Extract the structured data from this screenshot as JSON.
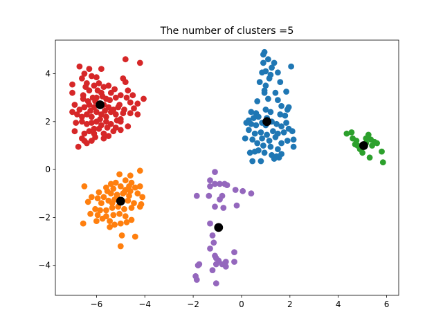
{
  "chart_data": {
    "type": "scatter",
    "title": "The number of clusters =5",
    "xlabel": "",
    "ylabel": "",
    "xlim": [
      -7.7,
      6.5
    ],
    "ylim": [
      -5.25,
      5.4
    ],
    "x_ticks": [
      -6,
      -4,
      -2,
      0,
      2,
      4,
      6
    ],
    "x_tick_labels": [
      "−6",
      "−4",
      "−2",
      "0",
      "2",
      "4",
      "6"
    ],
    "y_ticks": [
      -4,
      -2,
      0,
      2,
      4
    ],
    "y_tick_labels": [
      "−4",
      "−2",
      "0",
      "2",
      "4"
    ],
    "grid": false,
    "series": [
      {
        "color": "#d62728",
        "points": [
          [
            -6.7,
            4.3
          ],
          [
            -6.3,
            4.2
          ],
          [
            -6.5,
            4.0
          ],
          [
            -6.6,
            3.8
          ],
          [
            -6.2,
            3.9
          ],
          [
            -6.0,
            3.85
          ],
          [
            -5.8,
            4.2
          ],
          [
            -6.4,
            3.6
          ],
          [
            -6.1,
            3.5
          ],
          [
            -5.9,
            3.6
          ],
          [
            -5.7,
            3.45
          ],
          [
            -6.3,
            3.3
          ],
          [
            -5.5,
            3.5
          ],
          [
            -7.0,
            3.55
          ],
          [
            -7.0,
            3.2
          ],
          [
            -6.55,
            3.1
          ],
          [
            -6.0,
            3.0
          ],
          [
            -5.8,
            3.2
          ],
          [
            -5.6,
            2.95
          ],
          [
            -5.4,
            3.2
          ],
          [
            -5.2,
            3.0
          ],
          [
            -5.0,
            3.1
          ],
          [
            -4.9,
            3.8
          ],
          [
            -4.8,
            3.65
          ],
          [
            -4.7,
            3.3
          ],
          [
            -4.5,
            3.1
          ],
          [
            -4.6,
            2.8
          ],
          [
            -4.3,
            2.75
          ],
          [
            -4.8,
            4.6
          ],
          [
            -4.2,
            4.45
          ],
          [
            -4.05,
            2.95
          ],
          [
            -5.1,
            2.6
          ],
          [
            -5.3,
            2.5
          ],
          [
            -5.5,
            2.6
          ],
          [
            -5.7,
            2.7
          ],
          [
            -5.9,
            2.75
          ],
          [
            -6.1,
            2.6
          ],
          [
            -6.3,
            2.7
          ],
          [
            -6.5,
            2.6
          ],
          [
            -6.7,
            2.5
          ],
          [
            -6.9,
            2.7
          ],
          [
            -7.0,
            2.4
          ],
          [
            -6.8,
            2.3
          ],
          [
            -6.6,
            2.2
          ],
          [
            -6.4,
            2.3
          ],
          [
            -6.2,
            2.2
          ],
          [
            -6.0,
            2.4
          ],
          [
            -5.8,
            2.3
          ],
          [
            -5.6,
            2.2
          ],
          [
            -5.4,
            2.4
          ],
          [
            -5.2,
            2.3
          ],
          [
            -5.0,
            2.1
          ],
          [
            -4.85,
            2.5
          ],
          [
            -4.6,
            2.35
          ],
          [
            -4.45,
            2.55
          ],
          [
            -4.3,
            2.3
          ],
          [
            -6.85,
            1.95
          ],
          [
            -6.6,
            2.0
          ],
          [
            -6.4,
            1.9
          ],
          [
            -6.2,
            1.95
          ],
          [
            -6.0,
            2.0
          ],
          [
            -5.8,
            1.85
          ],
          [
            -5.6,
            2.0
          ],
          [
            -5.4,
            1.9
          ],
          [
            -5.2,
            1.75
          ],
          [
            -5.0,
            2.0
          ],
          [
            -4.7,
            1.8
          ],
          [
            -6.9,
            1.6
          ],
          [
            -6.5,
            1.5
          ],
          [
            -6.3,
            1.6
          ],
          [
            -6.1,
            1.5
          ],
          [
            -5.9,
            1.7
          ],
          [
            -5.7,
            1.5
          ],
          [
            -5.5,
            1.4
          ],
          [
            -5.3,
            1.6
          ],
          [
            -6.6,
            1.3
          ],
          [
            -6.4,
            1.1
          ],
          [
            -6.2,
            1.2
          ],
          [
            -5.7,
            1.3
          ],
          [
            -5.0,
            1.65
          ],
          [
            -6.75,
            0.95
          ],
          [
            -6.5,
            1.2
          ],
          [
            -6.1,
            1.7
          ],
          [
            -5.85,
            2.1
          ],
          [
            -5.45,
            2.9
          ],
          [
            -5.95,
            3.3
          ],
          [
            -6.15,
            3.0
          ],
          [
            -6.35,
            2.85
          ],
          [
            -5.25,
            3.35
          ],
          [
            -5.05,
            2.7
          ],
          [
            -4.9,
            2.35
          ],
          [
            -5.75,
            3.05
          ],
          [
            -6.55,
            2.95
          ],
          [
            -6.25,
            2.45
          ],
          [
            -5.55,
            1.75
          ],
          [
            -6.05,
            1.35
          ],
          [
            -4.75,
            3.0
          ],
          [
            -5.15,
            2.05
          ],
          [
            -5.65,
            2.45
          ],
          [
            -6.45,
            3.45
          ],
          [
            -6.05,
            2.85
          ]
        ]
      },
      {
        "color": "#1f77b4",
        "points": [
          [
            0.9,
            4.8
          ],
          [
            0.95,
            4.9
          ],
          [
            1.1,
            4.6
          ],
          [
            0.9,
            4.45
          ],
          [
            1.35,
            4.45
          ],
          [
            1.25,
            4.25
          ],
          [
            1.0,
            4.1
          ],
          [
            0.85,
            4.05
          ],
          [
            1.5,
            4.05
          ],
          [
            1.2,
            3.95
          ],
          [
            2.05,
            4.3
          ],
          [
            1.15,
            3.8
          ],
          [
            1.6,
            3.65
          ],
          [
            1.0,
            3.5
          ],
          [
            0.75,
            3.65
          ],
          [
            0.95,
            3.3
          ],
          [
            1.85,
            3.25
          ],
          [
            0.95,
            3.2
          ],
          [
            1.4,
            3.2
          ],
          [
            1.1,
            2.95
          ],
          [
            0.65,
            2.85
          ],
          [
            1.5,
            2.9
          ],
          [
            1.95,
            2.6
          ],
          [
            1.65,
            2.65
          ],
          [
            1.2,
            2.4
          ],
          [
            1.0,
            2.5
          ],
          [
            0.6,
            2.35
          ],
          [
            0.4,
            2.4
          ],
          [
            1.6,
            2.3
          ],
          [
            1.8,
            2.25
          ],
          [
            1.9,
            2.5
          ],
          [
            0.7,
            2.2
          ],
          [
            0.5,
            2.15
          ],
          [
            0.3,
            2.05
          ],
          [
            0.2,
            1.95
          ],
          [
            0.4,
            1.9
          ],
          [
            0.6,
            1.85
          ],
          [
            0.85,
            1.95
          ],
          [
            1.0,
            1.85
          ],
          [
            1.25,
            2.0
          ],
          [
            1.45,
            1.9
          ],
          [
            1.65,
            1.8
          ],
          [
            1.85,
            1.95
          ],
          [
            0.3,
            1.65
          ],
          [
            0.55,
            1.5
          ],
          [
            0.8,
            1.55
          ],
          [
            1.05,
            1.45
          ],
          [
            1.3,
            1.6
          ],
          [
            1.5,
            1.5
          ],
          [
            1.75,
            1.55
          ],
          [
            1.95,
            1.7
          ],
          [
            2.1,
            1.6
          ],
          [
            0.15,
            1.3
          ],
          [
            0.45,
            1.25
          ],
          [
            0.65,
            1.1
          ],
          [
            0.85,
            1.3
          ],
          [
            1.15,
            1.2
          ],
          [
            1.4,
            1.35
          ],
          [
            1.65,
            1.1
          ],
          [
            1.9,
            1.2
          ],
          [
            0.9,
            1.0
          ],
          [
            1.2,
            0.95
          ],
          [
            1.5,
            0.85
          ],
          [
            0.35,
            0.7
          ],
          [
            0.55,
            0.75
          ],
          [
            0.7,
            0.8
          ],
          [
            0.95,
            0.7
          ],
          [
            1.25,
            0.6
          ],
          [
            1.45,
            0.55
          ],
          [
            1.65,
            0.65
          ],
          [
            2.15,
            1.25
          ],
          [
            0.45,
            0.35
          ],
          [
            0.8,
            0.35
          ],
          [
            1.35,
            0.45
          ],
          [
            1.55,
            0.5
          ],
          [
            2.15,
            0.95
          ],
          [
            1.05,
            2.15
          ]
        ]
      },
      {
        "color": "#2ca02c",
        "points": [
          [
            4.35,
            1.5
          ],
          [
            4.55,
            1.55
          ],
          [
            4.6,
            1.3
          ],
          [
            4.75,
            1.2
          ],
          [
            4.8,
            1.0
          ],
          [
            4.9,
            0.85
          ],
          [
            5.0,
            0.7
          ],
          [
            5.15,
            1.3
          ],
          [
            5.15,
            1.1
          ],
          [
            5.25,
            1.45
          ],
          [
            5.35,
            1.25
          ],
          [
            5.5,
            1.15
          ],
          [
            5.6,
            1.1
          ],
          [
            5.8,
            0.75
          ],
          [
            5.85,
            0.3
          ],
          [
            5.3,
            0.5
          ],
          [
            4.7,
            1.05
          ],
          [
            5.4,
            1.0
          ]
        ]
      },
      {
        "color": "#ff7f0e",
        "points": [
          [
            -4.2,
            -0.05
          ],
          [
            -4.6,
            -0.25
          ],
          [
            -4.8,
            -0.45
          ],
          [
            -4.55,
            -0.55
          ],
          [
            -5.05,
            -0.2
          ],
          [
            -5.2,
            -0.55
          ],
          [
            -5.4,
            -0.6
          ],
          [
            -5.6,
            -0.75
          ],
          [
            -6.5,
            -0.7
          ],
          [
            -5.9,
            -0.95
          ],
          [
            -5.55,
            -0.9
          ],
          [
            -5.3,
            -0.8
          ],
          [
            -5.0,
            -0.7
          ],
          [
            -4.8,
            -0.85
          ],
          [
            -4.6,
            -0.9
          ],
          [
            -4.4,
            -0.75
          ],
          [
            -4.2,
            -0.7
          ],
          [
            -4.3,
            -1.0
          ],
          [
            -4.65,
            -1.1
          ],
          [
            -4.9,
            -1.0
          ],
          [
            -5.15,
            -1.05
          ],
          [
            -5.4,
            -1.0
          ],
          [
            -5.7,
            -1.15
          ],
          [
            -5.95,
            -1.2
          ],
          [
            -6.2,
            -1.15
          ],
          [
            -6.35,
            -1.35
          ],
          [
            -5.8,
            -1.4
          ],
          [
            -5.5,
            -1.3
          ],
          [
            -5.25,
            -1.25
          ],
          [
            -4.95,
            -1.35
          ],
          [
            -4.7,
            -1.3
          ],
          [
            -4.45,
            -1.4
          ],
          [
            -4.15,
            -1.45
          ],
          [
            -4.1,
            -1.15
          ],
          [
            -4.2,
            -1.55
          ],
          [
            -4.55,
            -1.6
          ],
          [
            -4.85,
            -1.65
          ],
          [
            -5.1,
            -1.55
          ],
          [
            -5.35,
            -1.6
          ],
          [
            -5.6,
            -1.7
          ],
          [
            -5.85,
            -1.7
          ],
          [
            -6.05,
            -1.65
          ],
          [
            -6.25,
            -1.85
          ],
          [
            -5.95,
            -1.9
          ],
          [
            -5.6,
            -1.95
          ],
          [
            -5.3,
            -1.9
          ],
          [
            -5.05,
            -1.85
          ],
          [
            -4.8,
            -1.95
          ],
          [
            -4.55,
            -2.1
          ],
          [
            -5.45,
            -2.15
          ],
          [
            -5.75,
            -2.05
          ],
          [
            -6.0,
            -2.15
          ],
          [
            -6.55,
            -2.25
          ],
          [
            -5.25,
            -2.3
          ],
          [
            -5.0,
            -2.25
          ],
          [
            -4.75,
            -2.2
          ],
          [
            -5.45,
            -2.4
          ],
          [
            -4.95,
            -2.75
          ],
          [
            -4.4,
            -2.8
          ],
          [
            -5.0,
            -3.2
          ],
          [
            -5.15,
            -1.15
          ],
          [
            -4.85,
            -0.95
          ],
          [
            -5.35,
            -1.4
          ],
          [
            -4.65,
            -0.7
          ]
        ]
      },
      {
        "color": "#9467bd",
        "points": [
          [
            -1.1,
            -0.1
          ],
          [
            -1.3,
            -0.45
          ],
          [
            -1.1,
            -0.6
          ],
          [
            -0.9,
            -0.6
          ],
          [
            -0.7,
            -0.6
          ],
          [
            -0.6,
            -0.65
          ],
          [
            -1.3,
            -0.7
          ],
          [
            -0.25,
            -0.85
          ],
          [
            0.05,
            -0.9
          ],
          [
            0.4,
            -1.0
          ],
          [
            -1.85,
            -1.1
          ],
          [
            -1.35,
            -1.1
          ],
          [
            -0.8,
            -1.1
          ],
          [
            -0.9,
            -1.25
          ],
          [
            -1.1,
            -1.55
          ],
          [
            -0.75,
            -1.6
          ],
          [
            -0.2,
            -1.5
          ],
          [
            -1.3,
            -2.25
          ],
          [
            -1.2,
            -2.75
          ],
          [
            -1.15,
            -3.05
          ],
          [
            -1.3,
            -3.3
          ],
          [
            -1.1,
            -3.6
          ],
          [
            -1.05,
            -3.7
          ],
          [
            -0.95,
            -3.8
          ],
          [
            -0.65,
            -3.85
          ],
          [
            -0.3,
            -3.45
          ],
          [
            -0.3,
            -3.85
          ],
          [
            -0.8,
            -3.95
          ],
          [
            -1.05,
            -3.95
          ],
          [
            -1.75,
            -3.95
          ],
          [
            -1.8,
            -4.0
          ],
          [
            -0.65,
            -4.05
          ],
          [
            -1.2,
            -4.2
          ],
          [
            -1.9,
            -4.45
          ],
          [
            -1.85,
            -4.6
          ],
          [
            -1.05,
            -4.75
          ]
        ]
      }
    ],
    "centroids": {
      "color": "#000000",
      "points": [
        [
          -5.85,
          2.7
        ],
        [
          1.05,
          2.0
        ],
        [
          5.05,
          1.0
        ],
        [
          -5.0,
          -1.32
        ],
        [
          -0.95,
          -2.42
        ]
      ]
    }
  }
}
